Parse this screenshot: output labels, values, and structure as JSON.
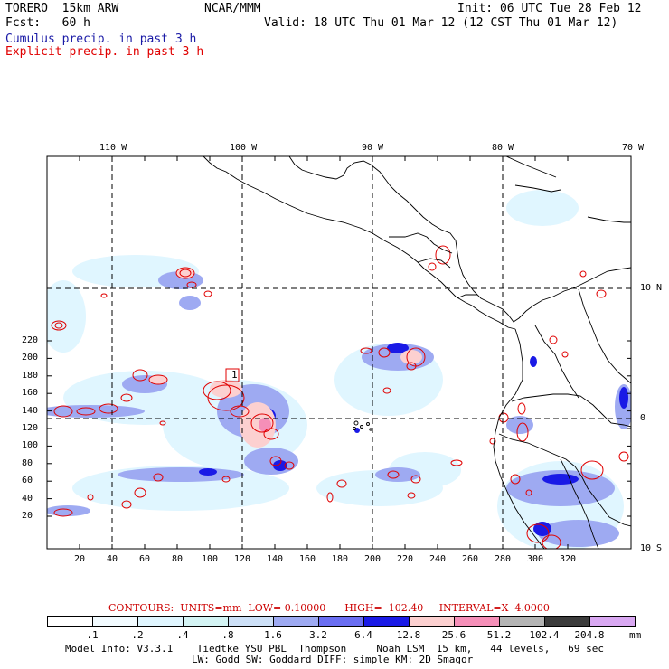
{
  "header": {
    "model": "TORERO  15km ARW",
    "org": "NCAR/MMM",
    "init": "Init: 06 UTC Tue 28 Feb 12",
    "fcst": "Fcst:   60 h",
    "valid": "Valid: 18 UTC Thu 01 Mar 12 (12 CST Thu 01 Mar 12)",
    "field_cumulus": "Cumulus precip. in past 3 h",
    "field_explicit": "Explicit precip. in past 3 h",
    "color_cumulus": "#1a1aa6",
    "color_explicit": "#e00000"
  },
  "map": {
    "lon_labels": [
      "110 W",
      "100 W",
      "90 W",
      "80 W",
      "70 W"
    ],
    "lat_labels": [
      "10 N",
      "0",
      "10 S"
    ],
    "y_ticks": [
      "220",
      "200",
      "180",
      "160",
      "140",
      "120",
      "100",
      "80",
      "60",
      "40",
      "20"
    ],
    "x_ticks": [
      "20",
      "40",
      "60",
      "80",
      "100",
      "120",
      "140",
      "160",
      "180",
      "200",
      "220",
      "240",
      "260",
      "280",
      "300",
      "320"
    ],
    "cell_label": "1"
  },
  "contours": {
    "text": "CONTOURS:  UNITS=mm  LOW= 0.10000      HIGH=  102.40     INTERVAL=X  4.0000",
    "color": "#cc0000"
  },
  "colorbar": {
    "colors": [
      "#ffffff",
      "#f2fbff",
      "#e0f6ff",
      "#d4f4f4",
      "#cde0f7",
      "#9eaaf2",
      "#6a6ef2",
      "#1a1ae6",
      "#fcd0d0",
      "#f58fb8",
      "#b4b4b4",
      "#3c3c3c",
      "#d9a8f2"
    ],
    "labels": [
      ".1",
      ".2",
      ".4",
      ".8",
      "1.6",
      "3.2",
      "6.4",
      "12.8",
      "25.6",
      "51.2",
      "102.4",
      "204.8"
    ],
    "units": "mm"
  },
  "footer": {
    "line1": "Model Info: V3.3.1    Tiedtke YSU PBL  Thompson     Noah LSM  15 km,   44 levels,   69 sec",
    "line2": "LW: Godd SW: Goddard DIFF: simple KM: 2D Smagor"
  }
}
